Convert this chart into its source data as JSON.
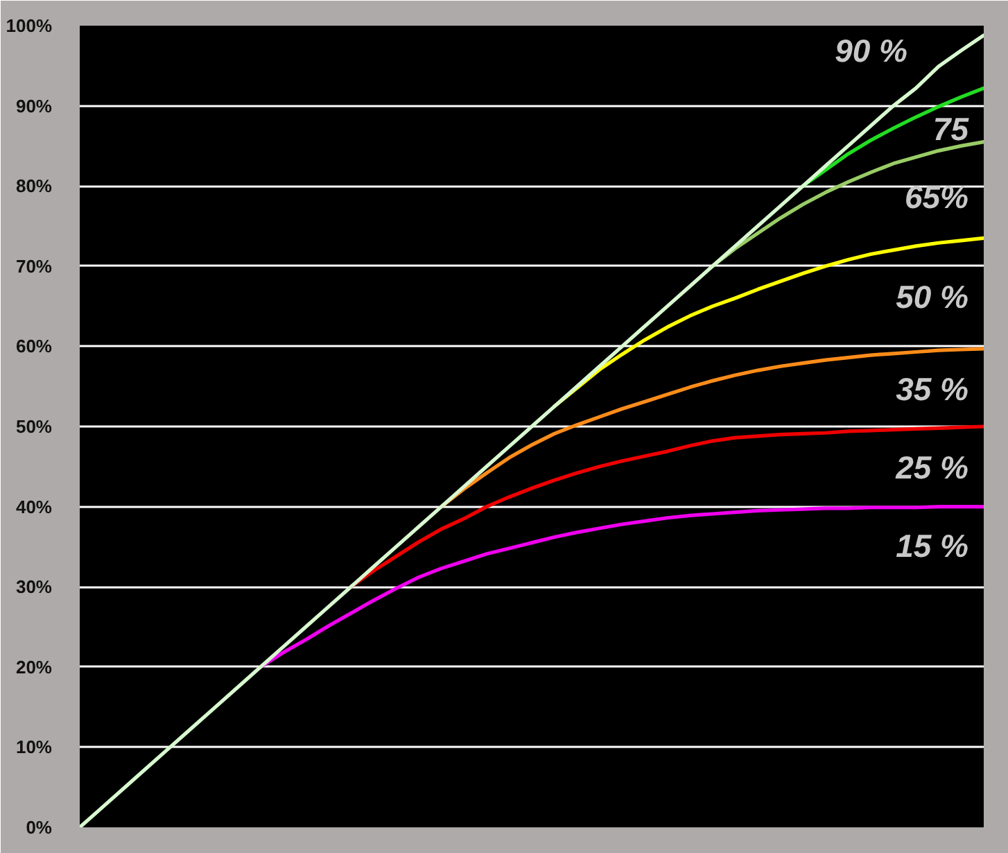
{
  "chart_data": {
    "type": "line",
    "categories": [
      null,
      null,
      null,
      null,
      null,
      null,
      null,
      null,
      null,
      null,
      null,
      null,
      null,
      null,
      null,
      null,
      null,
      null,
      null,
      null,
      null,
      null,
      null,
      null,
      null,
      null,
      null,
      null,
      null,
      null,
      null,
      null,
      null,
      null,
      null,
      null,
      null,
      null,
      null,
      null,
      null
    ],
    "series": [
      {
        "name": "90 %",
        "color": "#d8f8d0",
        "values": [
          0,
          2.5,
          5,
          7.5,
          10,
          12.5,
          15,
          17.5,
          20,
          22.5,
          25,
          27.5,
          30,
          32.5,
          35,
          37.5,
          40,
          42.5,
          45,
          47.5,
          50,
          52.5,
          55,
          57.5,
          60,
          62.5,
          65,
          67.5,
          70,
          72.5,
          75,
          77.5,
          80,
          82.5,
          85,
          87.5,
          90,
          92.2,
          94.9,
          96.9,
          98.8
        ]
      },
      {
        "name": "75",
        "color": "#22dd22",
        "values": [
          null,
          null,
          null,
          null,
          null,
          null,
          null,
          null,
          null,
          null,
          null,
          null,
          null,
          null,
          null,
          null,
          null,
          null,
          null,
          null,
          null,
          null,
          null,
          null,
          null,
          null,
          null,
          null,
          null,
          null,
          null,
          null,
          80,
          82.0,
          84.0,
          85.7,
          87.2,
          88.6,
          89.9,
          91.1,
          92.2
        ]
      },
      {
        "name": "65%",
        "color": "#99cc66",
        "values": [
          null,
          null,
          null,
          null,
          null,
          null,
          null,
          null,
          null,
          null,
          null,
          null,
          null,
          null,
          null,
          null,
          null,
          null,
          null,
          null,
          null,
          null,
          null,
          null,
          null,
          null,
          null,
          null,
          70,
          72.2,
          74.1,
          76.0,
          77.7,
          79.2,
          80.5,
          81.7,
          82.8,
          83.6,
          84.4,
          85.0,
          85.5
        ]
      },
      {
        "name": "50 %",
        "color": "#ffff00",
        "values": [
          null,
          null,
          null,
          null,
          null,
          null,
          null,
          null,
          null,
          null,
          null,
          null,
          null,
          null,
          null,
          null,
          null,
          null,
          null,
          null,
          null,
          52.5,
          54.8,
          57.1,
          59.0,
          60.8,
          62.4,
          63.8,
          65.0,
          66.0,
          67.1,
          68.1,
          69.1,
          70.0,
          70.8,
          71.5,
          72.0,
          72.5,
          72.9,
          73.2,
          73.5
        ]
      },
      {
        "name": "35 %",
        "color": "#ff8c1a",
        "values": [
          null,
          null,
          null,
          null,
          null,
          null,
          null,
          null,
          null,
          null,
          null,
          null,
          null,
          null,
          null,
          null,
          40,
          42.2,
          44.2,
          46.1,
          47.7,
          49.1,
          50.2,
          51.2,
          52.2,
          53.1,
          54.0,
          54.9,
          55.7,
          56.4,
          57.0,
          57.5,
          57.9,
          58.3,
          58.6,
          58.9,
          59.1,
          59.3,
          59.5,
          59.6,
          59.7
        ]
      },
      {
        "name": "25 %",
        "color": "#ee0000",
        "values": [
          null,
          null,
          null,
          null,
          null,
          null,
          null,
          null,
          null,
          null,
          null,
          null,
          30,
          32.0,
          33.8,
          35.6,
          37.2,
          38.5,
          40.0,
          41.2,
          42.3,
          43.3,
          44.2,
          45.0,
          45.7,
          46.3,
          46.9,
          47.6,
          48.2,
          48.6,
          48.8,
          49.0,
          49.1,
          49.2,
          49.4,
          49.5,
          49.6,
          49.7,
          49.8,
          49.9,
          50.0
        ]
      },
      {
        "name": "15 %",
        "color": "#ee00ee",
        "values": [
          null,
          null,
          null,
          null,
          null,
          null,
          null,
          null,
          20,
          21.8,
          23.4,
          25.1,
          26.7,
          28.3,
          29.8,
          31.2,
          32.3,
          33.2,
          34.1,
          34.8,
          35.5,
          36.2,
          36.8,
          37.3,
          37.8,
          38.2,
          38.6,
          38.9,
          39.1,
          39.3,
          39.5,
          39.6,
          39.7,
          39.8,
          39.8,
          39.9,
          39.9,
          39.9,
          40.0,
          40.0,
          40.0
        ]
      }
    ],
    "ylim": [
      0,
      100
    ],
    "yticks": [
      {
        "value": 0,
        "label": "0%"
      },
      {
        "value": 10,
        "label": "10%"
      },
      {
        "value": 20,
        "label": "20%"
      },
      {
        "value": 30,
        "label": "30%"
      },
      {
        "value": 40,
        "label": "40%"
      },
      {
        "value": 50,
        "label": "50%"
      },
      {
        "value": 60,
        "label": "60%"
      },
      {
        "value": 70,
        "label": "70%"
      },
      {
        "value": 80,
        "label": "80%"
      },
      {
        "value": 90,
        "label": "90%"
      },
      {
        "value": 100,
        "label": "100%"
      }
    ],
    "grid": "y",
    "tick_labels": "y"
  }
}
